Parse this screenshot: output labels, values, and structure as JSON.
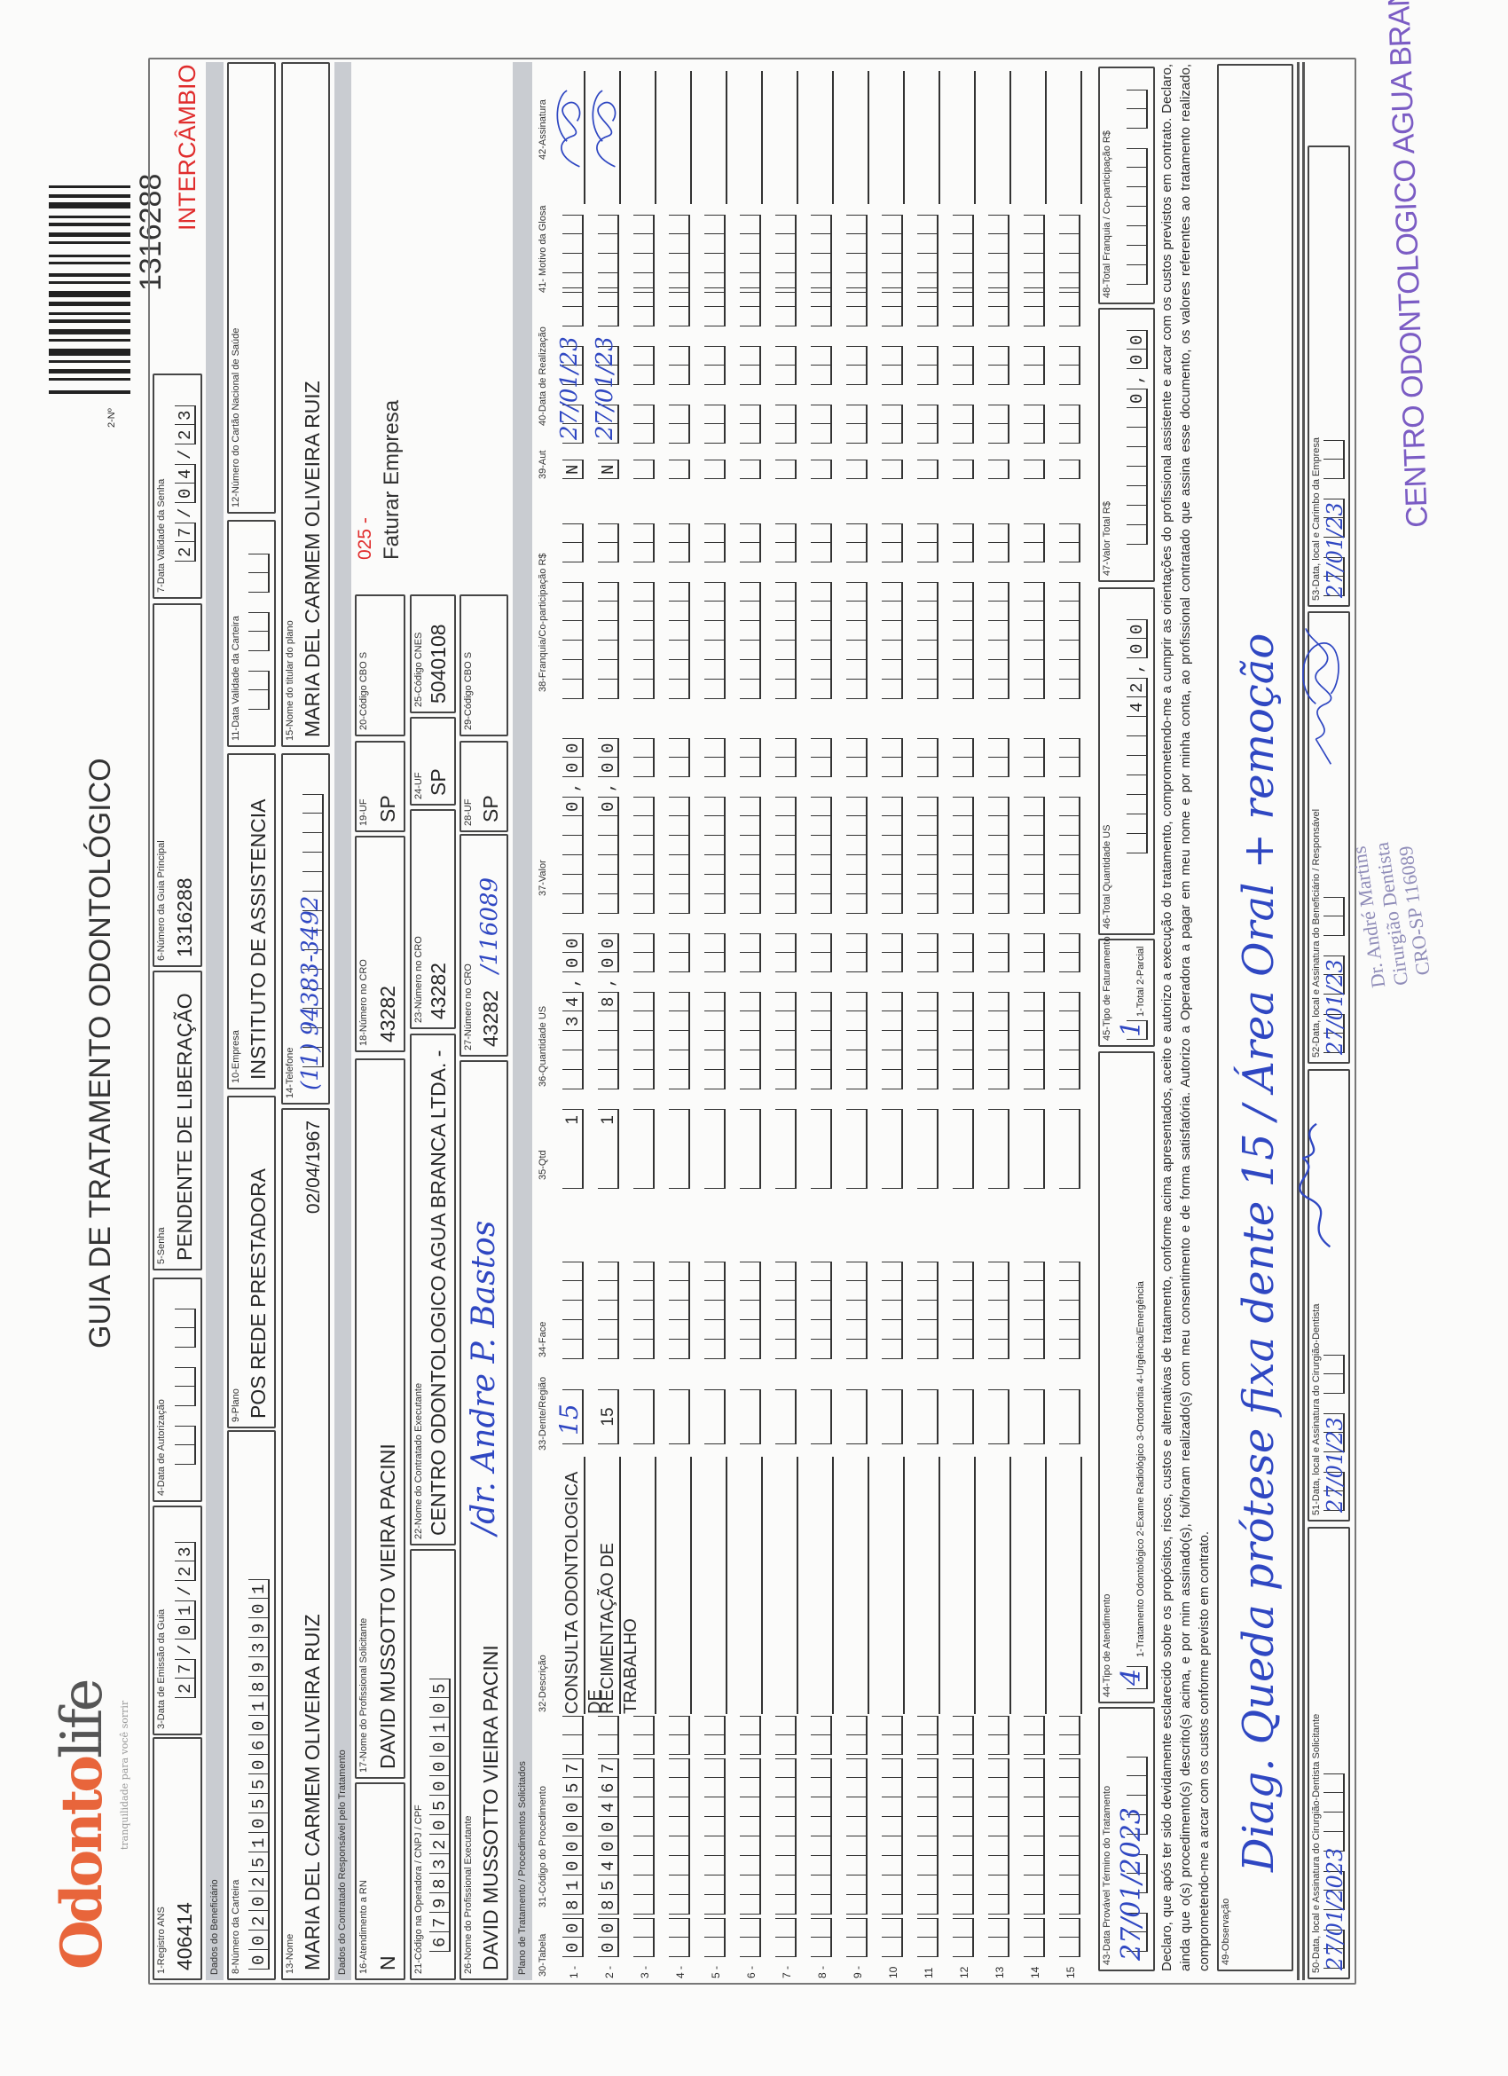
{
  "logo": {
    "brand_part1": "Odonto",
    "brand_part2": "life",
    "tagline": "tranquilidade para você sorrir"
  },
  "title": "GUIA DE TRATAMENTO ODONTOLÓGICO",
  "guide_number": {
    "label": "2-Nº",
    "value": "1316288",
    "tag": "INTERCÂMBIO"
  },
  "colors": {
    "brand_orange": "#e8653b",
    "tag_red": "#e02c2c",
    "ink_blue": "#2f47c2",
    "stamp_purple": "#7b5cc4",
    "band_gray": "#c9ccd1"
  },
  "header": {
    "registro_ans": {
      "label": "1-Registro ANS",
      "value": "406414"
    },
    "data_emissao": {
      "label": "3-Data de Emissão da Guia",
      "value": "27/01/23"
    },
    "data_autorizacao": {
      "label": "4-Data de Autorização",
      "value": ""
    },
    "senha": {
      "label": "5-Senha",
      "value": "PENDENTE DE LIBERAÇÃO"
    },
    "guia_principal": {
      "label": "6-Número da Guia Principal",
      "value": "1316288"
    },
    "validade_senha": {
      "label": "7-Data Validade da Senha",
      "value": "27/04/23"
    }
  },
  "beneficiario": {
    "section": "Dados do Beneficiário",
    "carteira": {
      "label": "8-Número da Carteira",
      "value": "00202510550601893901"
    },
    "plano": {
      "label": "9-Plano",
      "value": "POS REDE PRESTADORA"
    },
    "empresa": {
      "label": "10-Empresa",
      "value": "INSTITUTO DE ASSISTENCIA"
    },
    "validade_carteira": {
      "label": "11-Data Validade da Carteira",
      "value": ""
    },
    "cartao_nacional": {
      "label": "12-Número do Cartão Nacional de Saúde",
      "value": ""
    },
    "nome": {
      "label": "13-Nome",
      "value": "MARIA DEL CARMEM OLIVEIRA RUIZ",
      "birth_date": "02/04/1967"
    },
    "telefone": {
      "label": "14-Telefone",
      "value": "(11) 94383-3492"
    },
    "titular": {
      "label": "15-Nome do titular do plano",
      "value": "MARIA DEL CARMEM OLIVEIRA RUIZ"
    }
  },
  "contratado": {
    "section": "Dados do Contratado Responsável pelo Tratamento",
    "atendimento_rn": {
      "label": "16-Atendimento a RN",
      "value": "N"
    },
    "prof_solicitante": {
      "label": "17-Nome do Profissional Solicitante",
      "value": "DAVID MUSSOTTO VIEIRA PACINI"
    },
    "cro_solicitante": {
      "label": "18-Número no CRO",
      "value": "43282"
    },
    "uf_solicitante": {
      "label": "19-UF",
      "value": "SP"
    },
    "cbo_solicitante": {
      "label": "20-Código CBO S",
      "value": ""
    },
    "faturamento_code": "025 -",
    "faturamento_text": "Faturar Empresa",
    "codigo_operadora": {
      "label": "21-Código na Operadora / CNPJ / CPF",
      "value": "67983205000105"
    },
    "nome_contratado": {
      "label": "22-Nome do Contratado Executante",
      "value": "CENTRO ODONTOLOGICO AGUA BRANCA LTDA. -"
    },
    "cro_contratado": {
      "label": "23-Número no CRO",
      "value": "43282"
    },
    "uf_contratado": {
      "label": "24-UF",
      "value": "SP"
    },
    "cnes": {
      "label": "25-Código CNES",
      "value": "5040108"
    },
    "prof_executante": {
      "label": "26-Nome do Profissional Executante",
      "value": "DAVID MUSSOTTO VIEIRA PACINI",
      "handwritten": "/dr. Andre P. Bastos"
    },
    "cro_executante": {
      "label": "27-Número no CRO",
      "value": "43282",
      "handwritten": "/116089"
    },
    "uf_executante": {
      "label": "28-UF",
      "value": "SP"
    },
    "cbo_executante": {
      "label": "29-Código CBO S",
      "value": ""
    }
  },
  "table": {
    "section": "Plano de Tratamento / Procedimentos Solicitados",
    "columns": {
      "tabela": "30-Tabela",
      "codigo": "31-Código do Procedimento",
      "descricao": "32-Descrição",
      "dente": "33-Dente/Região",
      "face": "34-Face",
      "qtd": "35-Qtd",
      "qtd_us": "36-Quantidade US",
      "valor": "37-Valor",
      "franquia": "38-Franquia/Co-participação R$",
      "aut": "39-Aut",
      "data": "40-Data de Realização",
      "glosa": "41- Motivo da Glosa",
      "assinatura": "42-Assinatura"
    },
    "rows": [
      {
        "n": "1 -",
        "tabela": "00",
        "codigo": "81000057",
        "descricao": "CONSULTA ODONTOLOGICA DE",
        "dente": "",
        "dente_hw": "15",
        "qtd": "1",
        "qtd_us": "34,00",
        "valor": "0,00",
        "aut": "N",
        "data_hw": "27/01/23",
        "signed": true
      },
      {
        "n": "2 -",
        "tabela": "00",
        "codigo": "85400467",
        "descricao": "RECIMENTAÇÃO DE TRABALHO",
        "dente": "15",
        "dente_hw": "",
        "qtd": "1",
        "qtd_us": "8,00",
        "valor": "0,00",
        "aut": "N",
        "data_hw": "27/01/23",
        "signed": true
      },
      {
        "n": "3 -"
      },
      {
        "n": "4 -"
      },
      {
        "n": "5 -"
      },
      {
        "n": "6 -"
      },
      {
        "n": "7 -"
      },
      {
        "n": "8 -"
      },
      {
        "n": "9 -"
      },
      {
        "n": "10"
      },
      {
        "n": "11"
      },
      {
        "n": "12"
      },
      {
        "n": "13"
      },
      {
        "n": "14"
      },
      {
        "n": "15"
      }
    ]
  },
  "footer": {
    "termino": {
      "label": "43-Data Provável Término do Tratamento",
      "handwritten": "27/01/2023"
    },
    "tipo_atendimento": {
      "label": "44-Tipo de Atendimento",
      "handwritten": "4",
      "options": "1-Tratamento Odontológico  2-Exame Radiológico  3-Ortodontia  4-Urgência/Emergência"
    },
    "tipo_faturamento": {
      "label": "45-Tipo de Faturamento",
      "handwritten": "1",
      "options": "1-Total 2-Parcial"
    },
    "total_qtd_us": {
      "label": "46-Total Quantidade US",
      "value": "42,00"
    },
    "valor_total": {
      "label": "47-Valor Total R$",
      "value": "0,00"
    },
    "total_franquia": {
      "label": "48-Total Franquia / Co-participação R$",
      "value": ""
    },
    "declaration": "Declaro, que após ter sido devidamente esclarecido sobre os propósitos, riscos, custos e alternativas de tratamento, conforme acima apresentados, aceito e autorizo a execução do tratamento, comprometendo-me a cumprir as orientações do profissional assistente e arcar com os custos previstos em contrato. Declaro, ainda que o(s) procedimento(s) descrito(s) acima, e por mim assinado(s), foi/foram realizado(s) com meu consentimento e de forma satisfatória. Autorizo a Operadora a pagar em meu nome e por minha conta, ao profissional contratado que assina esse documento, os valores referentes ao tratamento realizado, comprometendo-me a arcar com os custos conforme previsto em contrato.",
    "observacao": {
      "label": "49-Observação",
      "handwritten": "Diag. Queda prótese fixa dente 15 / Área Oral + remoção"
    },
    "sig50": {
      "label": "50-Data, local e Assinatura do Cirurgião-Dentista Solicitante",
      "handwritten": "27/01/2023"
    },
    "sig51": {
      "label": "51-Data, local e Assinatura do Cirurgião-Dentista",
      "handwritten": "27/01/23"
    },
    "sig52": {
      "label": "52-Data, local e Assinatura do Beneficiário / Responsável",
      "handwritten": "27/01/23"
    },
    "sig53": {
      "label": "53-Data, local e Carimbo da Empresa",
      "handwritten": "27/01/23"
    }
  },
  "stamps": {
    "dentist": [
      "Dr. André Martins",
      "Cirurgião Dentista",
      "CRO-SP 116089"
    ],
    "company": "CENTRO ODONTOLOGICO AGUA BRANCA LTDA-ME"
  }
}
